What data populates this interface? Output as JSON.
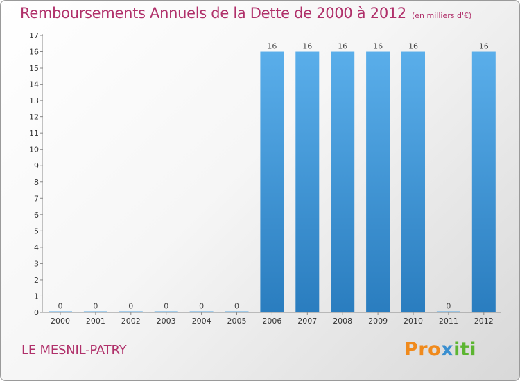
{
  "header": {
    "title": "Remboursements Annuels de la Dette de 2000 à 2012",
    "unit": "(en milliers d'€)"
  },
  "footer": {
    "commune": "LE MESNIL-PATRY",
    "logo_letters": [
      "P",
      "r",
      "o",
      "x",
      "i",
      "t",
      "i"
    ],
    "logo_colors": [
      "#f08a1c",
      "#f08a1c",
      "#f08a1c",
      "#3a8fd0",
      "#5cb531",
      "#5cb531",
      "#5cb531"
    ]
  },
  "chart_data": {
    "type": "bar",
    "categories": [
      "2000",
      "2001",
      "2002",
      "2003",
      "2004",
      "2005",
      "2006",
      "2007",
      "2008",
      "2009",
      "2010",
      "2011",
      "2012"
    ],
    "values": [
      0,
      0,
      0,
      0,
      0,
      0,
      16,
      16,
      16,
      16,
      16,
      0,
      16
    ],
    "data_labels": [
      "0",
      "0",
      "0",
      "0",
      "0",
      "0",
      "16",
      "16",
      "16",
      "16",
      "16",
      "0",
      "16"
    ],
    "ylim": [
      0,
      17
    ],
    "yticks": [
      0,
      1,
      2,
      3,
      4,
      5,
      6,
      7,
      8,
      9,
      10,
      11,
      12,
      13,
      14,
      15,
      16,
      17
    ],
    "grid": false,
    "bar_color_top": "#5aaeea",
    "bar_color_bottom": "#2a7dbf"
  }
}
